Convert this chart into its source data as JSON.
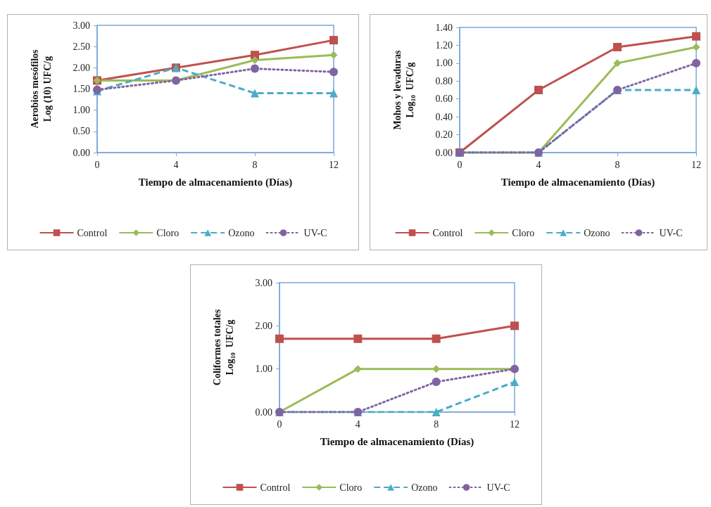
{
  "chart_data": [
    {
      "type": "line",
      "x": [
        0,
        4,
        8,
        12
      ],
      "xlabel": "Tiempo de almacenamiento (Días)",
      "ylabel": "Aerobios mesófilos\nLog (10) UFC/g",
      "xlim": [
        0,
        12
      ],
      "xticks": [
        0,
        4,
        8,
        12
      ],
      "ylim": [
        0,
        3
      ],
      "yticks": [
        {
          "value": 0,
          "label": "0.00"
        },
        {
          "value": 0.5,
          "label": "0.50"
        },
        {
          "value": 1,
          "label": "1.00"
        },
        {
          "value": 1.5,
          "label": "1.50"
        },
        {
          "value": 2,
          "label": "2.00"
        },
        {
          "value": 2.5,
          "label": "2.50"
        },
        {
          "value": 3,
          "label": "3.00"
        }
      ],
      "legend": "bottom",
      "series": [
        {
          "name": "Control",
          "color": "#c0504d",
          "marker": "square",
          "line_style": "solid",
          "values": [
            1.7,
            2.0,
            2.3,
            2.65
          ]
        },
        {
          "name": "Cloro",
          "color": "#9bbb59",
          "marker": "diamond",
          "line_style": "solid",
          "values": [
            1.7,
            1.7,
            2.18,
            2.3
          ]
        },
        {
          "name": "Ozono",
          "color": "#4bacc6",
          "marker": "triangle",
          "line_style": "dashed",
          "values": [
            1.45,
            2.0,
            1.4,
            1.4
          ]
        },
        {
          "name": "UV-C",
          "color": "#8064a2",
          "marker": "circle",
          "line_style": "dotted",
          "values": [
            1.48,
            1.7,
            1.98,
            1.9
          ]
        }
      ]
    },
    {
      "type": "line",
      "x": [
        0,
        4,
        8,
        12
      ],
      "xlabel": "Tiempo de almacenamiento (Días)",
      "ylabel": "Mohos y levaduras\nLog$_{10}$  UFC/g",
      "xlim": [
        0,
        12
      ],
      "xticks": [
        0,
        4,
        8,
        12
      ],
      "ylim": [
        0,
        1.4
      ],
      "yticks": [
        {
          "value": 0,
          "label": "0.00"
        },
        {
          "value": 0.2,
          "label": "0.20"
        },
        {
          "value": 0.4,
          "label": "0.40"
        },
        {
          "value": 0.6,
          "label": "0.60"
        },
        {
          "value": 0.8,
          "label": "0.80"
        },
        {
          "value": 1,
          "label": "1.00"
        },
        {
          "value": 1.2,
          "label": "1.20"
        },
        {
          "value": 1.4,
          "label": "1.40"
        }
      ],
      "legend": "bottom",
      "series": [
        {
          "name": "Control",
          "color": "#c0504d",
          "marker": "square",
          "line_style": "solid",
          "values": [
            0,
            0.7,
            1.18,
            1.3
          ]
        },
        {
          "name": "Cloro",
          "color": "#9bbb59",
          "marker": "diamond",
          "line_style": "solid",
          "values": [
            0,
            0,
            1.0,
            1.18
          ]
        },
        {
          "name": "Ozono",
          "color": "#4bacc6",
          "marker": "triangle",
          "line_style": "dashed",
          "values": [
            0,
            0,
            0.7,
            0.7
          ]
        },
        {
          "name": "UV-C",
          "color": "#8064a2",
          "marker": "circle",
          "line_style": "dotted",
          "values": [
            0,
            0,
            0.7,
            1.0
          ]
        }
      ]
    },
    {
      "type": "line",
      "x": [
        0,
        4,
        8,
        12
      ],
      "xlabel": "Tiempo de almacenamiento (Días)",
      "ylabel": "Coliformes totales\nLog$_{10}$  UFC/g",
      "xlim": [
        0,
        12
      ],
      "xticks": [
        0,
        4,
        8,
        12
      ],
      "ylim": [
        0,
        3
      ],
      "yticks": [
        {
          "value": 0,
          "label": "0.00"
        },
        {
          "value": 1,
          "label": "1.00"
        },
        {
          "value": 2,
          "label": "2.00"
        },
        {
          "value": 3,
          "label": "3.00"
        }
      ],
      "legend": "bottom",
      "series": [
        {
          "name": "Control",
          "color": "#c0504d",
          "marker": "square",
          "line_style": "solid",
          "values": [
            1.7,
            1.7,
            1.7,
            2.0
          ]
        },
        {
          "name": "Cloro",
          "color": "#9bbb59",
          "marker": "diamond",
          "line_style": "solid",
          "values": [
            0,
            1.0,
            1.0,
            1.0
          ]
        },
        {
          "name": "Ozono",
          "color": "#4bacc6",
          "marker": "triangle",
          "line_style": "dashed",
          "values": [
            0,
            0,
            0,
            0.7
          ]
        },
        {
          "name": "UV-C",
          "color": "#8064a2",
          "marker": "circle",
          "line_style": "dotted",
          "values": [
            0,
            0,
            0.7,
            1.0
          ]
        }
      ]
    }
  ]
}
